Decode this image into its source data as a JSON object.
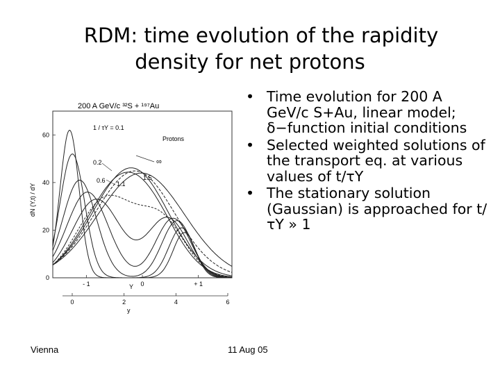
{
  "slide": {
    "title_line1": "RDM: time evolution of the rapidity",
    "title_line2": "density for net protons",
    "bullets": [
      "Time evolution for 200 A GeV/c S+Au, linear model; δ−function initial conditions",
      "Selected weighted solutions of the transport eq. at various values of t/τY",
      "The stationary solution (Gaussian) is approached for t/τY » 1"
    ],
    "footer_left": "Vienna",
    "footer_center": "11 Aug 05"
  },
  "chart_data": {
    "type": "line",
    "title": "200 A GeV/c ³²S + ¹⁹⁷Au",
    "legend_label": "Protons",
    "ylabel": "dN (Y,t) / dY",
    "xlabel": "Y",
    "x2label": "y",
    "xlim": [
      -1.6,
      1.6
    ],
    "ylim": [
      0,
      70
    ],
    "y_ticks": [
      0,
      20,
      40,
      60
    ],
    "x_ticks": [
      "- 1",
      "0",
      "+ 1"
    ],
    "x_tick_values": [
      -1,
      0,
      1
    ],
    "x2_ticks": [
      "0",
      "2",
      "4",
      "6"
    ],
    "annotations": [
      "1 / τY = 0.1",
      "0.2",
      "0.6",
      "1.1",
      "1.5",
      "∞"
    ],
    "series": [
      {
        "params": {
          "mu1": -1.3,
          "s1": 0.17,
          "a1": 62,
          "mu2": 0.75,
          "s2": 0.2,
          "a2": 19
        }
      },
      {
        "params": {
          "mu1": -1.25,
          "s1": 0.22,
          "a1": 52,
          "mu2": 0.7,
          "s2": 0.23,
          "a2": 21
        }
      },
      {
        "params": {
          "mu1": -1.12,
          "s1": 0.3,
          "a1": 41,
          "mu2": 0.62,
          "s2": 0.27,
          "a2": 24
        }
      },
      {
        "params": {
          "mu1": -0.98,
          "s1": 0.37,
          "a1": 36,
          "mu2": 0.55,
          "s2": 0.31,
          "a2": 25
        }
      },
      {
        "params": {
          "mu1": -0.82,
          "s1": 0.43,
          "a1": 33,
          "mu2": 0.45,
          "s2": 0.36,
          "a2": 25
        }
      },
      {
        "params": {
          "mu1": -0.65,
          "s1": 0.5,
          "a1": 33,
          "mu2": 0.35,
          "s2": 0.42,
          "a2": 23
        }
      },
      {
        "params": {
          "mu1": -0.48,
          "s1": 0.58,
          "a1": 35,
          "mu2": 0.2,
          "s2": 0.5,
          "a2": 18
        }
      },
      {
        "params": {
          "mu1": -0.3,
          "s1": 0.66,
          "a1": 38,
          "mu2": 0.1,
          "s2": 0.55,
          "a2": 10
        }
      },
      {
        "params": {
          "mu1": -0.15,
          "s1": 0.72,
          "a1": 41,
          "mu2": 0.0,
          "s2": 0.6,
          "a2": 4
        }
      },
      {
        "params": {
          "mu1": -0.02,
          "s1": 0.77,
          "a1": 44,
          "mu2": 0.0,
          "s2": 0.6,
          "a2": 0
        }
      }
    ]
  }
}
